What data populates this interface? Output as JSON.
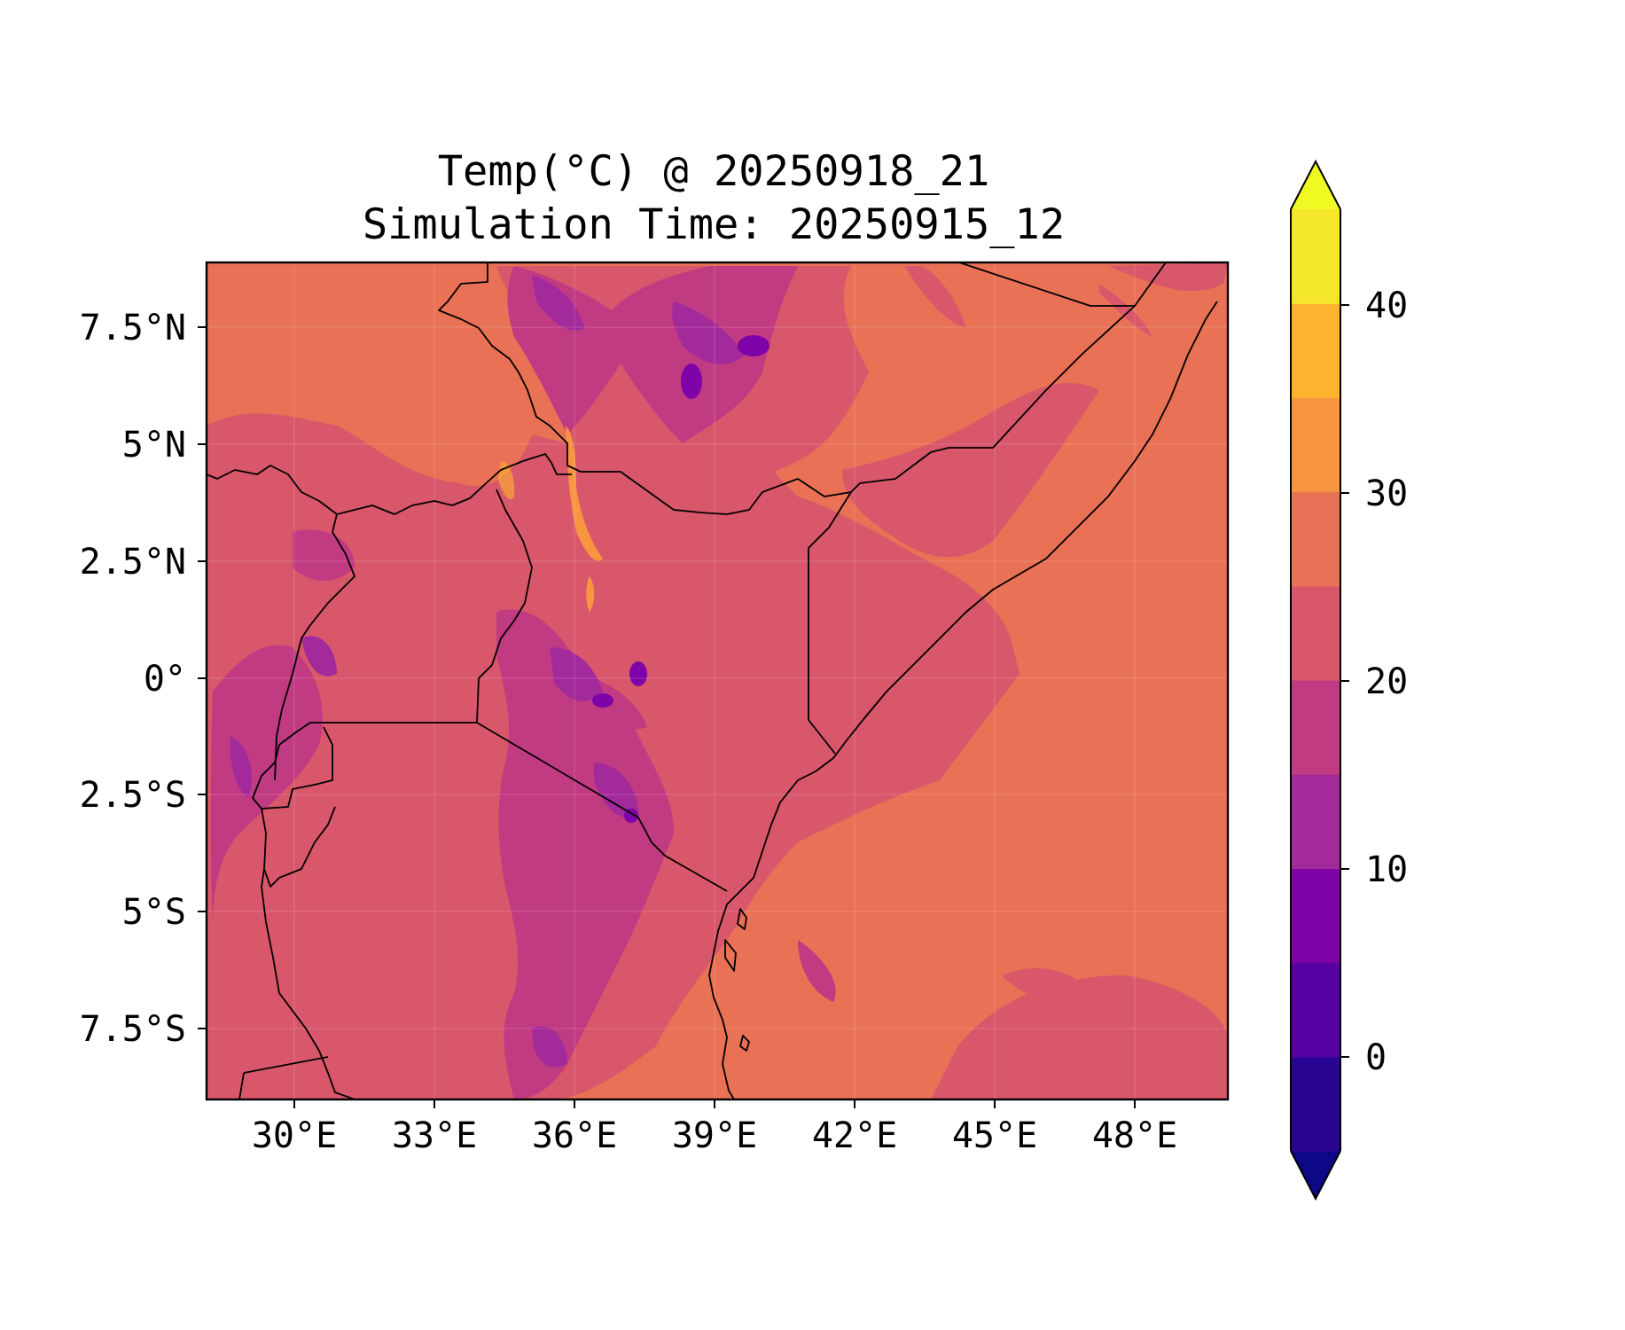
{
  "map": {
    "title_line1": "Temp(°C) @ 20250918_21",
    "title_line2": "Simulation Time: 20250915_12",
    "variable": "Temp",
    "units": "°C",
    "lat_ticks": [
      "7.5°N",
      "5°N",
      "2.5°N",
      "0°",
      "2.5°S",
      "5°S",
      "7.5°S"
    ],
    "lon_ticks": [
      "30°E",
      "33°E",
      "36°E",
      "39°E",
      "42°E",
      "45°E",
      "48°E"
    ],
    "lon_range": [
      28.1,
      50
    ],
    "lat_range": [
      -9,
      9
    ]
  },
  "colorbar": {
    "labels": [
      "40",
      "30",
      "20",
      "10",
      "0"
    ],
    "levels": [
      -5,
      0,
      5,
      10,
      15,
      20,
      25,
      30,
      35,
      40
    ],
    "extend": "both",
    "colors": [
      "#0d0887",
      "#2a0593",
      "#5601a4",
      "#7e03a8",
      "#a32a9a",
      "#c13b82",
      "#d8576b",
      "#e97155",
      "#f89541",
      "#fdb32f",
      "#f4e72b",
      "#f0f921"
    ]
  },
  "legend_colors": {
    "ocean_low": "#e97155",
    "mid": "#d8576b",
    "highland": "#c13b82",
    "cool": "#a32a9a",
    "cold": "#7e03a8",
    "warm": "#f89541"
  }
}
